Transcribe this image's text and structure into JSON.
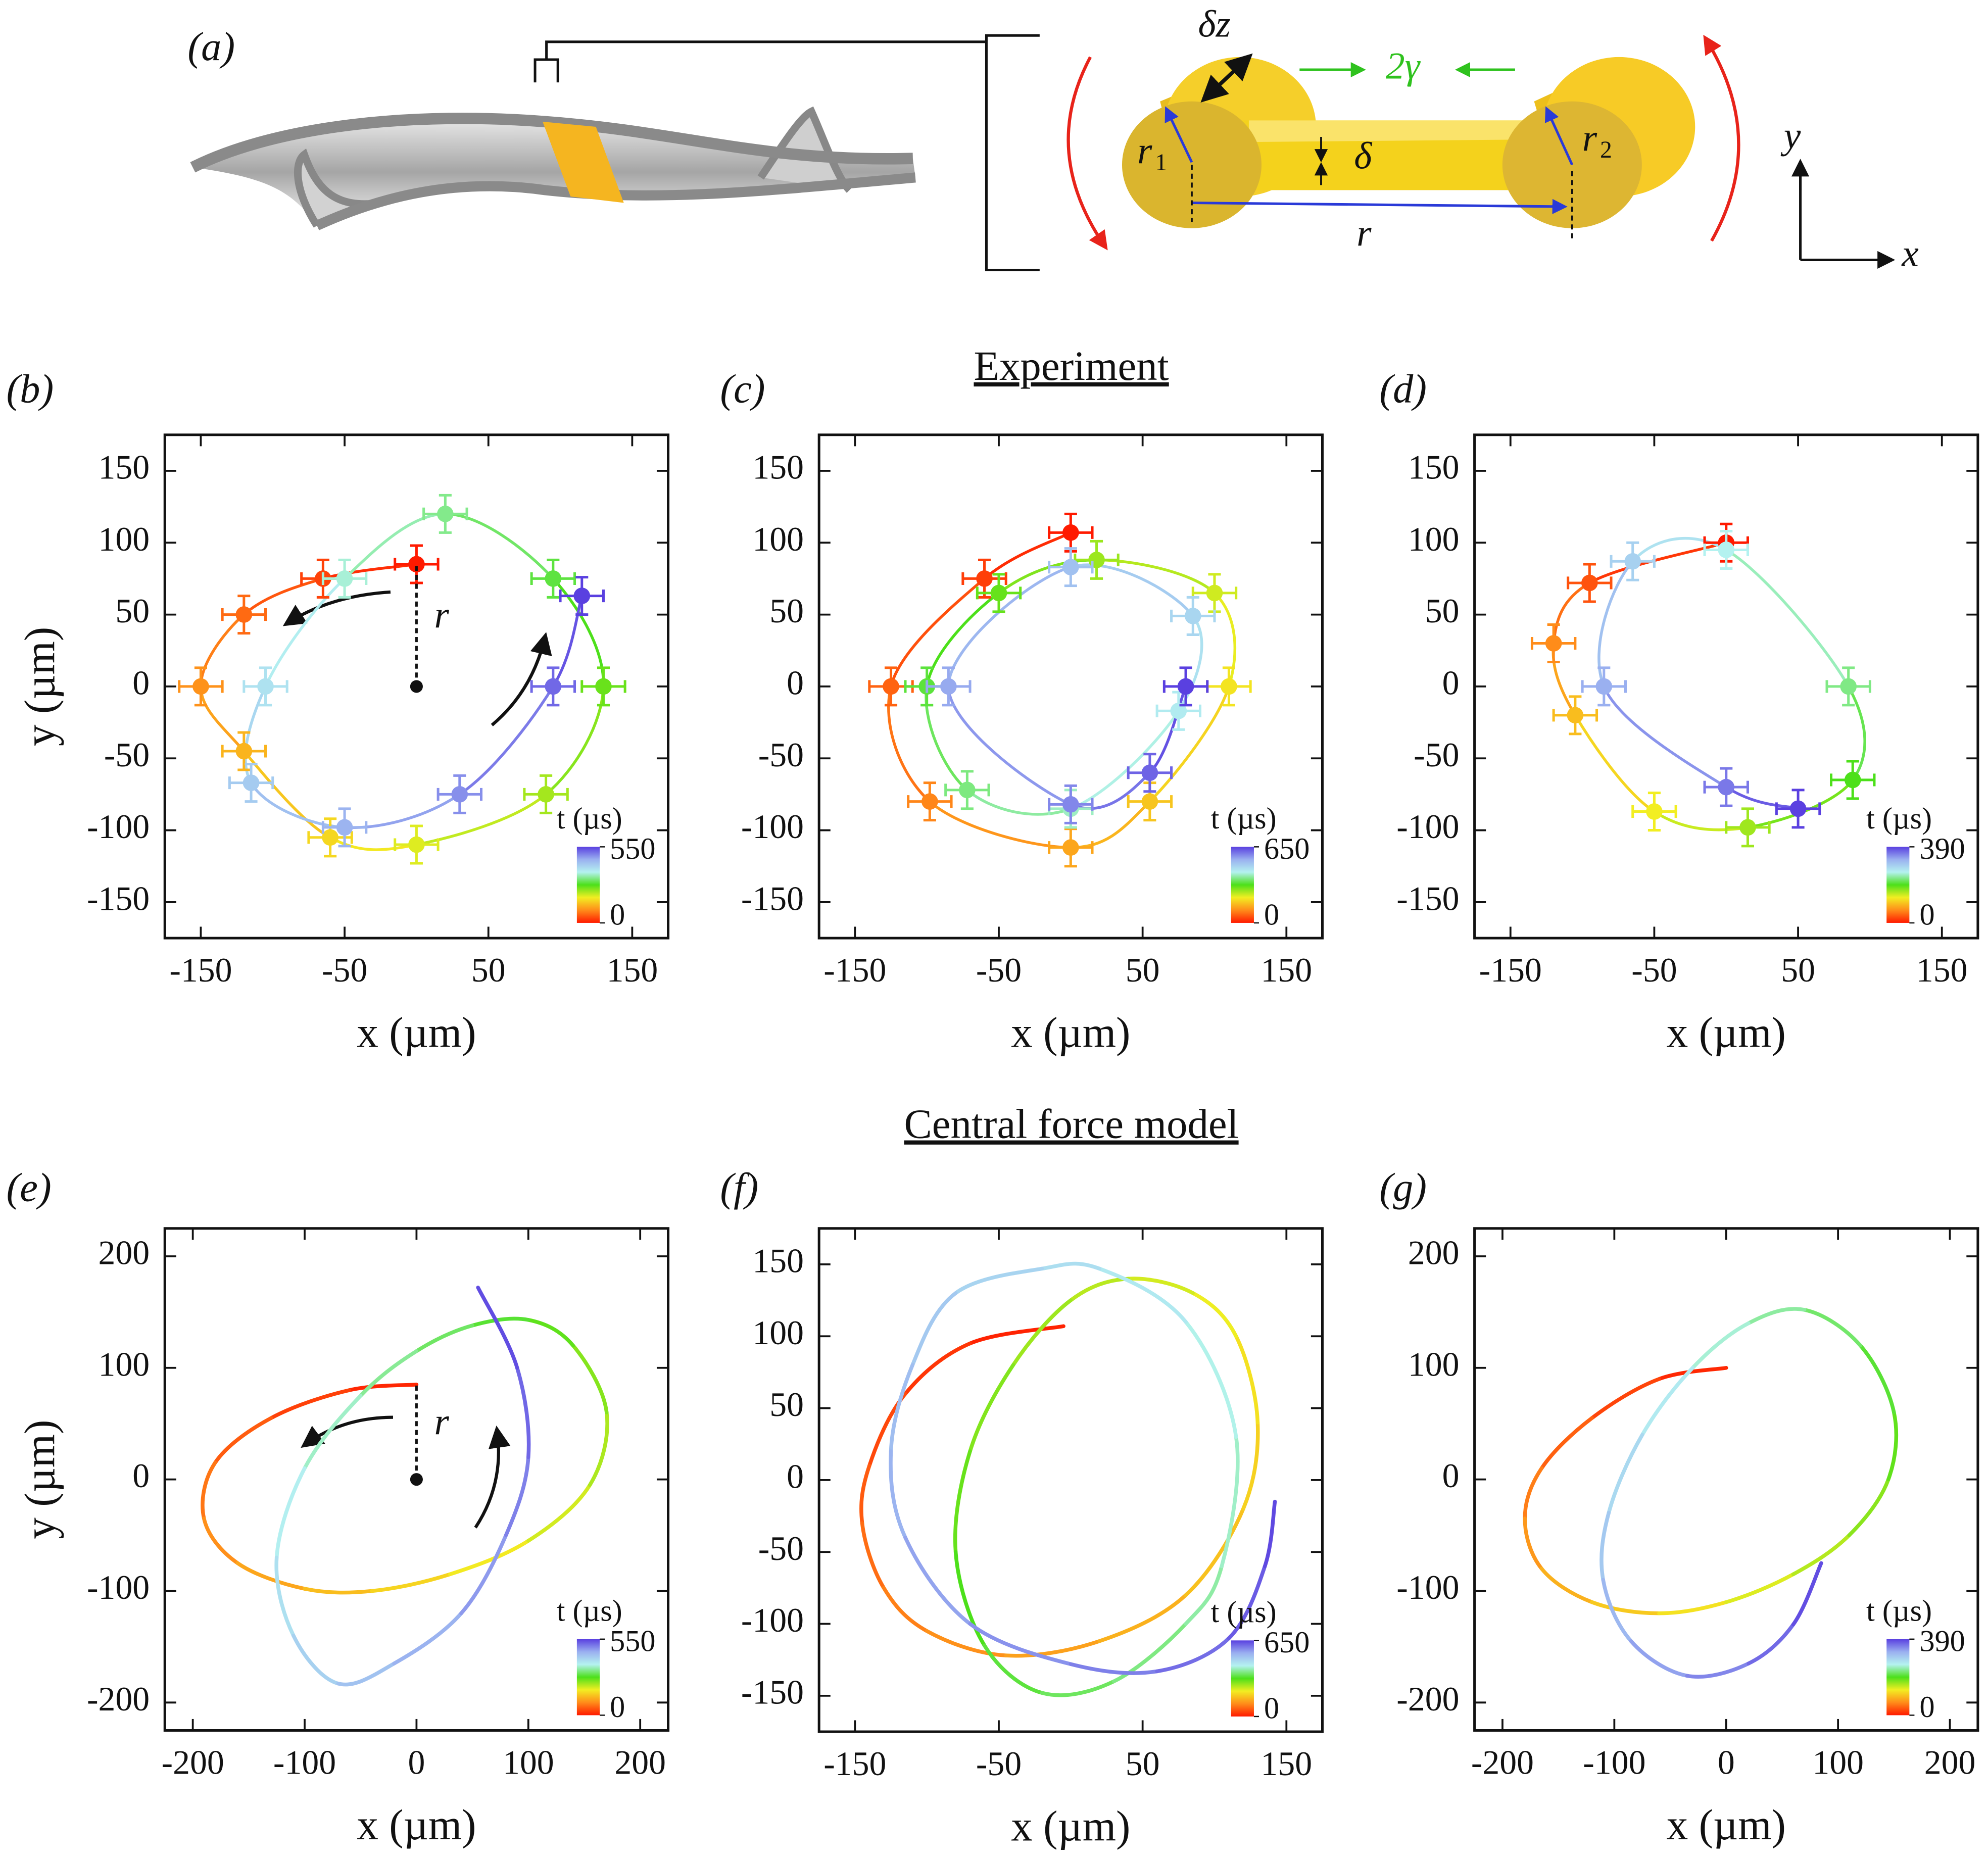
{
  "diagram": {
    "label": "(a)",
    "dz": "δz",
    "gamma": "2γ",
    "r1": "r",
    "r1_sub": "1",
    "r2": "r",
    "r2_sub": "2",
    "delta": "δ",
    "r": "r",
    "y_axis": "y",
    "x_axis": "x"
  },
  "headings": {
    "experiment": "Experiment",
    "model": "Central force model"
  },
  "chart_data": [
    {
      "type": "scatter",
      "panel": "(b)",
      "x": [
        0,
        -65,
        -120,
        -150,
        -120,
        -60,
        0,
        90,
        130,
        95,
        20,
        -50,
        -105,
        -115,
        -50,
        30,
        95,
        115
      ],
      "y": [
        85,
        75,
        50,
        0,
        -45,
        -105,
        -110,
        -75,
        0,
        75,
        120,
        75,
        0,
        -67,
        -98,
        -75,
        0,
        63
      ],
      "xerr": 15,
      "yerr": 13,
      "xlim": [
        -175,
        175
      ],
      "ylim": [
        -175,
        175
      ],
      "xticks": [
        -150,
        -50,
        50,
        150
      ],
      "yticks": [
        -150,
        -100,
        -50,
        0,
        50,
        100,
        150
      ],
      "xlabel": "x (µm)",
      "ylabel": "y (µm)",
      "annotation": "r",
      "colorbar": {
        "label": "t (µs)",
        "ticks": [
          0,
          550
        ],
        "colors": [
          "#ff1a00",
          "#ff8c1a",
          "#f2ee22",
          "#4ce01a",
          "#b4f2f0",
          "#9ab0f0",
          "#5a40e0"
        ]
      }
    },
    {
      "type": "scatter",
      "panel": "(c)",
      "x": [
        0,
        -60,
        -125,
        -98,
        0,
        55,
        110,
        100,
        18,
        -50,
        -100,
        -72,
        0,
        75,
        85,
        0,
        -85,
        0,
        55,
        80
      ],
      "y": [
        107,
        75,
        0,
        -80,
        -112,
        -80,
        0,
        65,
        88,
        65,
        0,
        -72,
        -85,
        -17,
        49,
        83,
        0,
        -82,
        -60,
        0
      ],
      "xerr": 15,
      "yerr": 13,
      "xlim": [
        -175,
        175
      ],
      "ylim": [
        -175,
        175
      ],
      "xticks": [
        -150,
        -50,
        50,
        150
      ],
      "yticks": [
        -150,
        -100,
        -50,
        0,
        50,
        100,
        150
      ],
      "xlabel": "x (µm)",
      "colorbar": {
        "label": "t (µs)",
        "ticks": [
          0,
          650
        ],
        "colors": [
          "#ff1a00",
          "#ff8c1a",
          "#f2ee22",
          "#4ce01a",
          "#b4f2f0",
          "#9ab0f0",
          "#5a40e0"
        ]
      }
    },
    {
      "type": "scatter",
      "panel": "(d)",
      "x": [
        0,
        -95,
        -120,
        -105,
        -50,
        15,
        88,
        85,
        0,
        -65,
        -85,
        0,
        50
      ],
      "y": [
        100,
        72,
        30,
        -20,
        -87,
        -98,
        -65,
        0,
        95,
        87,
        0,
        -70,
        -85
      ],
      "xerr": 15,
      "yerr": 13,
      "xlim": [
        -175,
        175
      ],
      "ylim": [
        -175,
        175
      ],
      "xticks": [
        -150,
        -50,
        50,
        150
      ],
      "yticks": [
        -150,
        -100,
        -50,
        0,
        50,
        100,
        150
      ],
      "xlabel": "x (µm)",
      "colorbar": {
        "label": "t (µs)",
        "ticks": [
          0,
          390
        ],
        "colors": [
          "#ff1a00",
          "#ff8c1a",
          "#f2ee22",
          "#4ce01a",
          "#b4f2f0",
          "#9ab0f0",
          "#5a40e0"
        ]
      }
    },
    {
      "type": "line",
      "panel": "(e)",
      "x": [
        0,
        -60,
        -130,
        -180,
        -190,
        -160,
        -100,
        -40,
        30,
        100,
        155,
        170,
        140,
        100,
        50,
        0,
        -50,
        -100,
        -125,
        -110,
        -70,
        -20,
        40,
        80,
        100,
        90,
        55
      ],
      "y": [
        85,
        80,
        55,
        15,
        -35,
        -75,
        -98,
        -100,
        -85,
        -55,
        -5,
        60,
        120,
        143,
        138,
        115,
        75,
        10,
        -70,
        -140,
        -183,
        -165,
        -120,
        -50,
        20,
        100,
        172
      ],
      "xlim": [
        -225,
        225
      ],
      "ylim": [
        -225,
        225
      ],
      "xticks": [
        -200,
        -100,
        0,
        100,
        200
      ],
      "yticks": [
        -200,
        -100,
        0,
        100,
        200
      ],
      "xlabel": "x (µm)",
      "ylabel": "y (µm)",
      "annotation": "r",
      "colorbar": {
        "label": "t (µs)",
        "ticks": [
          0,
          550
        ],
        "colors": [
          "#ff1a00",
          "#ff8c1a",
          "#f2ee22",
          "#4ce01a",
          "#b4f2f0",
          "#9ab0f0",
          "#5a40e0"
        ]
      }
    },
    {
      "type": "line",
      "panel": "(f)",
      "x": [
        -5,
        -70,
        -115,
        -140,
        -145,
        -130,
        -100,
        -45,
        20,
        80,
        120,
        130,
        115,
        85,
        40,
        0,
        -40,
        -70,
        -80,
        -60,
        -20,
        30,
        80,
        105,
        115,
        80,
        20,
        -20,
        -80,
        -110,
        -125,
        -115,
        -70,
        0,
        60,
        110,
        135,
        142
      ],
      "y": [
        107,
        95,
        60,
        10,
        -30,
        -75,
        -105,
        -122,
        -112,
        -80,
        -20,
        40,
        100,
        130,
        140,
        125,
        80,
        20,
        -50,
        -115,
        -148,
        -140,
        -100,
        -60,
        30,
        110,
        147,
        147,
        130,
        80,
        20,
        -40,
        -100,
        -128,
        -133,
        -110,
        -60,
        -15
      ],
      "xlim": [
        -175,
        175
      ],
      "ylim": [
        -175,
        175
      ],
      "xticks": [
        -150,
        -50,
        50,
        150
      ],
      "yticks": [
        -150,
        -100,
        -50,
        0,
        50,
        100,
        150
      ],
      "xlabel": "x (µm)",
      "colorbar": {
        "label": "t (µs)",
        "ticks": [
          0,
          650
        ],
        "colors": [
          "#ff1a00",
          "#ff8c1a",
          "#f2ee22",
          "#4ce01a",
          "#b4f2f0",
          "#9ab0f0",
          "#5a40e0"
        ]
      }
    },
    {
      "type": "line",
      "panel": "(g)",
      "x": [
        0,
        -60,
        -120,
        -165,
        -180,
        -165,
        -120,
        -60,
        0,
        60,
        110,
        145,
        150,
        120,
        70,
        20,
        -30,
        -75,
        -105,
        -110,
        -85,
        -35,
        20,
        60,
        85
      ],
      "y": [
        100,
        90,
        55,
        10,
        -35,
        -80,
        -110,
        -120,
        -110,
        -85,
        -50,
        0,
        60,
        120,
        152,
        140,
        100,
        40,
        -30,
        -90,
        -145,
        -176,
        -165,
        -130,
        -75
      ],
      "xlim": [
        -225,
        225
      ],
      "ylim": [
        -225,
        225
      ],
      "xticks": [
        -200,
        -100,
        0,
        100,
        200
      ],
      "yticks": [
        -200,
        -100,
        0,
        100,
        200
      ],
      "xlabel": "x (µm)",
      "colorbar": {
        "label": "t (µs)",
        "ticks": [
          0,
          390
        ],
        "colors": [
          "#ff1a00",
          "#ff8c1a",
          "#f2ee22",
          "#4ce01a",
          "#b4f2f0",
          "#9ab0f0",
          "#5a40e0"
        ]
      }
    }
  ]
}
